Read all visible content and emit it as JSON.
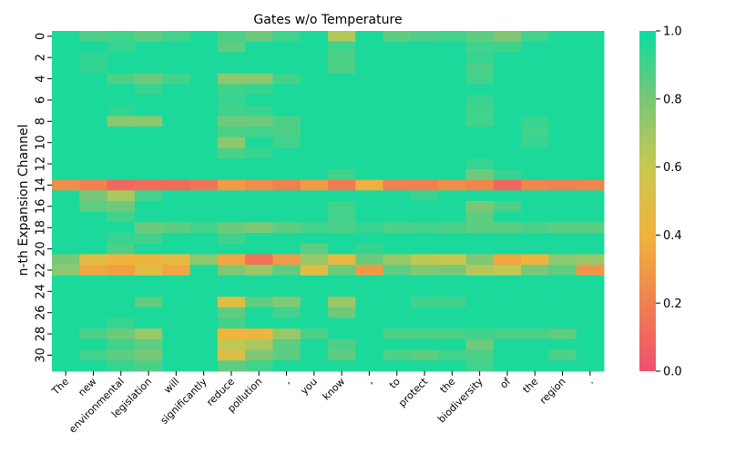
{
  "chart_data": {
    "type": "heatmap",
    "title": "Gates w/o Temperature",
    "ylabel": "n-th Expansion Channel",
    "xlabel": "",
    "x_tokens": [
      "The",
      "new",
      "environmental",
      "legislation",
      "will",
      "significantly",
      "reduce",
      "pollution",
      ",",
      "you",
      "know",
      ",",
      "to",
      "protect",
      "the",
      "biodiversity",
      "of",
      "the",
      "region",
      "."
    ],
    "y_tick_labels": [
      "0",
      "2",
      "4",
      "6",
      "8",
      "10",
      "12",
      "14",
      "16",
      "18",
      "20",
      "22",
      "24",
      "26",
      "28",
      "30"
    ],
    "y_ticks": [
      0,
      2,
      4,
      6,
      8,
      10,
      12,
      14,
      16,
      18,
      20,
      22,
      24,
      26,
      28,
      30
    ],
    "n_rows": 32,
    "colorbar": {
      "range": [
        0.0,
        1.0
      ],
      "tick_values": [
        0.0,
        0.2,
        0.4,
        0.6,
        0.8,
        1.0
      ],
      "tick_labels": [
        "0.0",
        "0.2",
        "0.4",
        "0.6",
        "0.8",
        "1.0"
      ],
      "colors": [
        "#f0506e",
        "#f08050",
        "#f0b43c",
        "#c8c850",
        "#78c878",
        "#0adca0"
      ]
    },
    "default_value": 0.97,
    "values": [
      [
        0,
        1,
        0.88
      ],
      [
        0,
        2,
        0.9
      ],
      [
        0,
        3,
        0.85
      ],
      [
        0,
        4,
        0.9
      ],
      [
        0,
        6,
        0.88
      ],
      [
        0,
        7,
        0.82
      ],
      [
        0,
        8,
        0.9
      ],
      [
        0,
        10,
        0.65
      ],
      [
        0,
        12,
        0.85
      ],
      [
        0,
        13,
        0.88
      ],
      [
        0,
        14,
        0.9
      ],
      [
        0,
        15,
        0.85
      ],
      [
        0,
        16,
        0.78
      ],
      [
        0,
        17,
        0.9
      ],
      [
        1,
        2,
        0.92
      ],
      [
        1,
        6,
        0.85
      ],
      [
        1,
        10,
        0.9
      ],
      [
        1,
        15,
        0.9
      ],
      [
        1,
        16,
        0.9
      ],
      [
        2,
        1,
        0.93
      ],
      [
        2,
        10,
        0.88
      ],
      [
        2,
        15,
        0.92
      ],
      [
        3,
        1,
        0.93
      ],
      [
        3,
        10,
        0.88
      ],
      [
        3,
        15,
        0.88
      ],
      [
        4,
        2,
        0.88
      ],
      [
        4,
        3,
        0.82
      ],
      [
        4,
        4,
        0.9
      ],
      [
        4,
        6,
        0.75
      ],
      [
        4,
        7,
        0.75
      ],
      [
        4,
        8,
        0.9
      ],
      [
        4,
        15,
        0.9
      ],
      [
        5,
        3,
        0.92
      ],
      [
        5,
        6,
        0.9
      ],
      [
        5,
        7,
        0.92
      ],
      [
        6,
        6,
        0.92
      ],
      [
        6,
        15,
        0.92
      ],
      [
        7,
        2,
        0.93
      ],
      [
        7,
        6,
        0.9
      ],
      [
        7,
        7,
        0.92
      ],
      [
        7,
        15,
        0.9
      ],
      [
        8,
        2,
        0.75
      ],
      [
        8,
        3,
        0.75
      ],
      [
        8,
        6,
        0.82
      ],
      [
        8,
        7,
        0.82
      ],
      [
        8,
        8,
        0.88
      ],
      [
        8,
        15,
        0.9
      ],
      [
        8,
        17,
        0.92
      ],
      [
        9,
        6,
        0.88
      ],
      [
        9,
        7,
        0.9
      ],
      [
        9,
        8,
        0.88
      ],
      [
        9,
        17,
        0.9
      ],
      [
        10,
        6,
        0.75
      ],
      [
        10,
        8,
        0.9
      ],
      [
        10,
        17,
        0.92
      ],
      [
        11,
        6,
        0.88
      ],
      [
        11,
        7,
        0.92
      ],
      [
        12,
        15,
        0.92
      ],
      [
        13,
        10,
        0.9
      ],
      [
        13,
        15,
        0.82
      ],
      [
        13,
        16,
        0.92
      ],
      [
        14,
        0,
        0.25
      ],
      [
        14,
        1,
        0.2
      ],
      [
        14,
        2,
        0.1
      ],
      [
        14,
        3,
        0.12
      ],
      [
        14,
        4,
        0.12
      ],
      [
        14,
        5,
        0.15
      ],
      [
        14,
        6,
        0.3
      ],
      [
        14,
        7,
        0.25
      ],
      [
        14,
        8,
        0.2
      ],
      [
        14,
        9,
        0.3
      ],
      [
        14,
        10,
        0.18
      ],
      [
        14,
        11,
        0.38
      ],
      [
        14,
        12,
        0.2
      ],
      [
        14,
        13,
        0.2
      ],
      [
        14,
        14,
        0.25
      ],
      [
        14,
        15,
        0.22
      ],
      [
        14,
        16,
        0.1
      ],
      [
        14,
        17,
        0.22
      ],
      [
        14,
        18,
        0.2
      ],
      [
        14,
        19,
        0.22
      ],
      [
        15,
        1,
        0.8
      ],
      [
        15,
        2,
        0.68
      ],
      [
        15,
        3,
        0.9
      ],
      [
        15,
        13,
        0.92
      ],
      [
        16,
        1,
        0.85
      ],
      [
        16,
        2,
        0.82
      ],
      [
        16,
        10,
        0.9
      ],
      [
        16,
        15,
        0.8
      ],
      [
        16,
        16,
        0.88
      ],
      [
        17,
        2,
        0.9
      ],
      [
        17,
        10,
        0.9
      ],
      [
        17,
        15,
        0.85
      ],
      [
        18,
        3,
        0.82
      ],
      [
        18,
        4,
        0.85
      ],
      [
        18,
        5,
        0.9
      ],
      [
        18,
        6,
        0.82
      ],
      [
        18,
        7,
        0.78
      ],
      [
        18,
        8,
        0.85
      ],
      [
        18,
        9,
        0.9
      ],
      [
        18,
        10,
        0.88
      ],
      [
        18,
        11,
        0.92
      ],
      [
        18,
        12,
        0.88
      ],
      [
        18,
        13,
        0.9
      ],
      [
        18,
        14,
        0.88
      ],
      [
        18,
        15,
        0.85
      ],
      [
        18,
        16,
        0.85
      ],
      [
        18,
        17,
        0.88
      ],
      [
        18,
        18,
        0.85
      ],
      [
        18,
        19,
        0.85
      ],
      [
        19,
        2,
        0.92
      ],
      [
        19,
        3,
        0.9
      ],
      [
        19,
        6,
        0.9
      ],
      [
        20,
        2,
        0.88
      ],
      [
        20,
        9,
        0.85
      ],
      [
        20,
        11,
        0.92
      ],
      [
        21,
        0,
        0.8
      ],
      [
        21,
        1,
        0.48
      ],
      [
        21,
        2,
        0.4
      ],
      [
        21,
        3,
        0.42
      ],
      [
        21,
        4,
        0.45
      ],
      [
        21,
        5,
        0.75
      ],
      [
        21,
        6,
        0.35
      ],
      [
        21,
        7,
        0.15
      ],
      [
        21,
        8,
        0.3
      ],
      [
        21,
        9,
        0.72
      ],
      [
        21,
        10,
        0.45
      ],
      [
        21,
        11,
        0.82
      ],
      [
        21,
        12,
        0.72
      ],
      [
        21,
        13,
        0.62
      ],
      [
        21,
        14,
        0.6
      ],
      [
        21,
        15,
        0.78
      ],
      [
        21,
        16,
        0.35
      ],
      [
        21,
        17,
        0.42
      ],
      [
        21,
        18,
        0.75
      ],
      [
        21,
        19,
        0.72
      ],
      [
        22,
        0,
        0.75
      ],
      [
        22,
        1,
        0.35
      ],
      [
        22,
        2,
        0.32
      ],
      [
        22,
        3,
        0.48
      ],
      [
        22,
        4,
        0.35
      ],
      [
        22,
        6,
        0.78
      ],
      [
        22,
        7,
        0.72
      ],
      [
        22,
        8,
        0.85
      ],
      [
        22,
        9,
        0.48
      ],
      [
        22,
        10,
        0.82
      ],
      [
        22,
        11,
        0.3
      ],
      [
        22,
        12,
        0.85
      ],
      [
        22,
        13,
        0.78
      ],
      [
        22,
        14,
        0.8
      ],
      [
        22,
        15,
        0.65
      ],
      [
        22,
        16,
        0.62
      ],
      [
        22,
        17,
        0.8
      ],
      [
        22,
        18,
        0.85
      ],
      [
        22,
        19,
        0.28
      ],
      [
        25,
        3,
        0.85
      ],
      [
        25,
        6,
        0.5
      ],
      [
        25,
        7,
        0.85
      ],
      [
        25,
        8,
        0.78
      ],
      [
        25,
        10,
        0.72
      ],
      [
        25,
        13,
        0.9
      ],
      [
        25,
        14,
        0.9
      ],
      [
        26,
        6,
        0.85
      ],
      [
        26,
        8,
        0.9
      ],
      [
        26,
        10,
        0.82
      ],
      [
        27,
        2,
        0.92
      ],
      [
        27,
        6,
        0.9
      ],
      [
        28,
        1,
        0.88
      ],
      [
        28,
        2,
        0.82
      ],
      [
        28,
        3,
        0.72
      ],
      [
        28,
        6,
        0.4
      ],
      [
        28,
        7,
        0.42
      ],
      [
        28,
        8,
        0.72
      ],
      [
        28,
        9,
        0.88
      ],
      [
        28,
        12,
        0.88
      ],
      [
        28,
        13,
        0.88
      ],
      [
        28,
        14,
        0.88
      ],
      [
        28,
        15,
        0.9
      ],
      [
        28,
        16,
        0.88
      ],
      [
        28,
        17,
        0.88
      ],
      [
        28,
        18,
        0.85
      ],
      [
        29,
        2,
        0.9
      ],
      [
        29,
        3,
        0.85
      ],
      [
        29,
        6,
        0.62
      ],
      [
        29,
        7,
        0.68
      ],
      [
        29,
        8,
        0.85
      ],
      [
        29,
        10,
        0.88
      ],
      [
        29,
        15,
        0.82
      ],
      [
        30,
        1,
        0.9
      ],
      [
        30,
        2,
        0.85
      ],
      [
        30,
        3,
        0.8
      ],
      [
        30,
        6,
        0.5
      ],
      [
        30,
        7,
        0.78
      ],
      [
        30,
        8,
        0.85
      ],
      [
        30,
        10,
        0.85
      ],
      [
        30,
        12,
        0.88
      ],
      [
        30,
        13,
        0.85
      ],
      [
        30,
        14,
        0.9
      ],
      [
        30,
        15,
        0.88
      ],
      [
        30,
        18,
        0.88
      ],
      [
        31,
        2,
        0.92
      ],
      [
        31,
        3,
        0.88
      ],
      [
        31,
        6,
        0.85
      ],
      [
        31,
        7,
        0.9
      ],
      [
        31,
        15,
        0.9
      ]
    ]
  }
}
